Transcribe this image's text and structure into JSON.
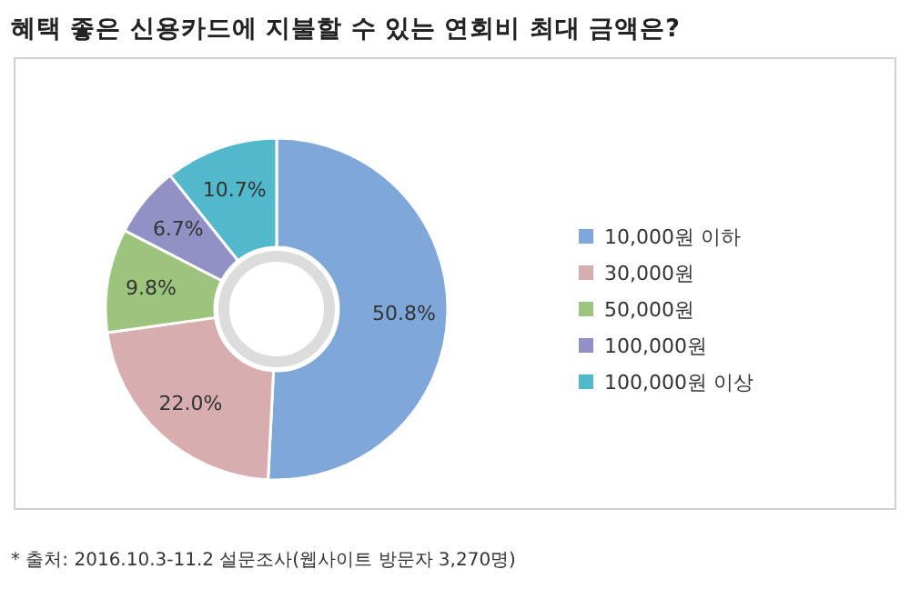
{
  "chart_data": {
    "type": "donut",
    "title": "혜택 좋은 신용카드에 지불할 수 있는 연회비 최대 금액은?",
    "categories": [
      "10,000원 이하",
      "30,000원",
      "50,000원",
      "100,000원",
      "100,000원 이상"
    ],
    "values": [
      50.8,
      22.0,
      9.8,
      6.7,
      10.7
    ],
    "colors": [
      "#7fa7d9",
      "#d8adb0",
      "#9cc47c",
      "#9191c6",
      "#52b9cd"
    ],
    "value_labels": [
      "50.8%",
      "22.0%",
      "9.8%",
      "6.7%",
      "10.7%"
    ],
    "legend": "right",
    "annotations": [
      "* 출처: 2016.10.3-11.2 설문조사(웹사이트 방문자 3,270명)"
    ]
  }
}
